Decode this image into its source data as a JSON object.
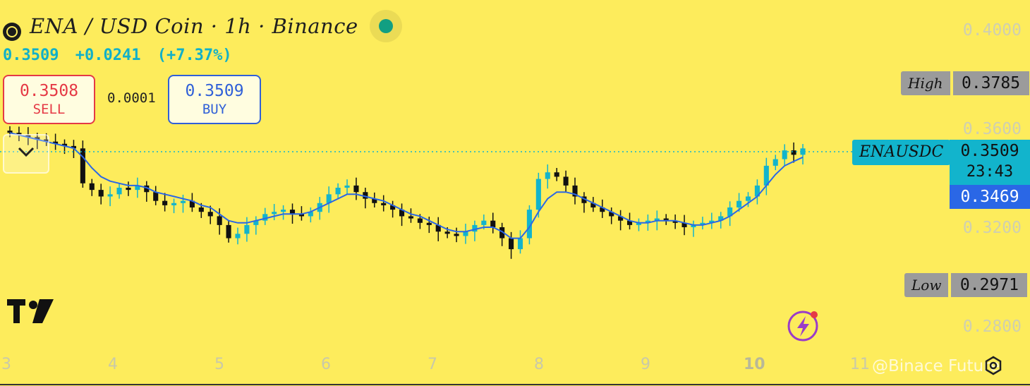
{
  "header": {
    "title": "ENA / USD Coin · 1h · Binance",
    "last_price": "0.3509",
    "change": "+0.0241",
    "change_pct": "(+7.37%)"
  },
  "trade": {
    "sell_price": "0.3508",
    "sell_label": "SELL",
    "spread": "0.0001",
    "buy_price": "0.3509",
    "buy_label": "BUY"
  },
  "markers": {
    "high_label": "High",
    "high_value": "0.3785",
    "low_label": "Low",
    "low_value": "0.2971",
    "pair_label": "ENAUSDC",
    "last_value": "0.3509",
    "countdown": "23:43",
    "ma_value": "0.3469"
  },
  "watermark": "@Binace Future",
  "colors": {
    "background": "#fdec5c",
    "up": "#12b4cc",
    "down": "#111111",
    "ma": "#2a67e6",
    "sell": "#e53945",
    "buy": "#3060d8"
  },
  "chart_data": {
    "type": "candlestick",
    "interval": "1h",
    "y_ticks": [
      "0.4000",
      "0.3600",
      "0.3200",
      "0.2800"
    ],
    "x_ticks": [
      "3",
      "4",
      "5",
      "6",
      "7",
      "8",
      "9",
      "10",
      "11"
    ],
    "ylim": [
      0.27,
      0.405
    ],
    "series": [
      {
        "name": "ENAUSDC",
        "values": [
          0.358,
          0.357,
          0.356,
          0.355,
          0.354,
          0.353,
          0.352,
          0.3509,
          0.335,
          0.332,
          0.329,
          0.33,
          0.333,
          0.332,
          0.334,
          0.331,
          0.327,
          0.325,
          0.326,
          0.327,
          0.324,
          0.322,
          0.32,
          0.316,
          0.31,
          0.312,
          0.316,
          0.318,
          0.321,
          0.322,
          0.323,
          0.321,
          0.32,
          0.322,
          0.326,
          0.33,
          0.333,
          0.334,
          0.331,
          0.328,
          0.326,
          0.325,
          0.323,
          0.32,
          0.319,
          0.317,
          0.316,
          0.313,
          0.312,
          0.311,
          0.313,
          0.316,
          0.318,
          0.315,
          0.31,
          0.305,
          0.31,
          0.323,
          0.337,
          0.34,
          0.338,
          0.334,
          0.329,
          0.326,
          0.324,
          0.322,
          0.32,
          0.318,
          0.316,
          0.317,
          0.318,
          0.319,
          0.318,
          0.317,
          0.315,
          0.316,
          0.317,
          0.318,
          0.32,
          0.324,
          0.327,
          0.329,
          0.334,
          0.343,
          0.346,
          0.35,
          0.348,
          0.3509
        ],
        "ma": [
          0.358,
          0.357,
          0.356,
          0.355,
          0.354,
          0.353,
          0.352,
          0.351,
          0.347,
          0.342,
          0.338,
          0.336,
          0.335,
          0.334,
          0.334,
          0.333,
          0.331,
          0.33,
          0.329,
          0.328,
          0.327,
          0.325,
          0.324,
          0.321,
          0.318,
          0.317,
          0.317,
          0.318,
          0.319,
          0.32,
          0.321,
          0.321,
          0.321,
          0.322,
          0.324,
          0.326,
          0.328,
          0.33,
          0.33,
          0.329,
          0.328,
          0.327,
          0.325,
          0.323,
          0.321,
          0.32,
          0.318,
          0.316,
          0.314,
          0.313,
          0.313,
          0.314,
          0.315,
          0.315,
          0.313,
          0.31,
          0.31,
          0.315,
          0.322,
          0.328,
          0.331,
          0.331,
          0.33,
          0.328,
          0.326,
          0.324,
          0.322,
          0.32,
          0.318,
          0.317,
          0.317,
          0.318,
          0.318,
          0.318,
          0.317,
          0.316,
          0.316,
          0.317,
          0.318,
          0.32,
          0.323,
          0.326,
          0.329,
          0.334,
          0.339,
          0.343,
          0.345,
          0.3469
        ]
      }
    ]
  }
}
